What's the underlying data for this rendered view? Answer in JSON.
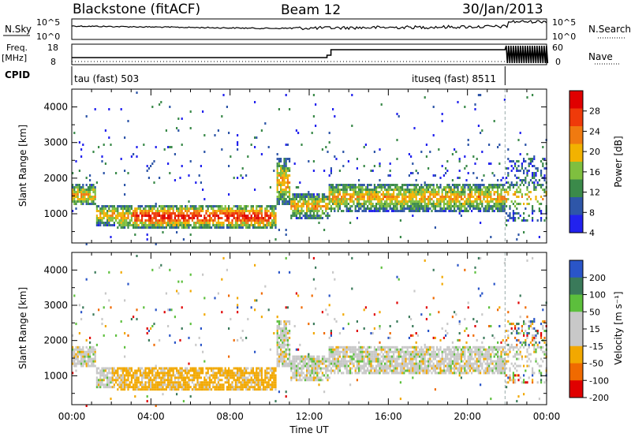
{
  "header": {
    "station": "Blackstone (fitACF)",
    "beam": "Beam 12",
    "date": "30/Jan/2013"
  },
  "left_labels": {
    "nsky": "N.Sky",
    "freq": "Freq.",
    "freq_unit": "[MHz]",
    "cpid": "CPID",
    "nsky_ticks": [
      "10^5",
      "10^0"
    ],
    "freq_ticks": [
      "18",
      "8"
    ]
  },
  "right_labels": {
    "nsearch": "N.Search",
    "nave": "Nave",
    "nsearch_ticks": [
      "10^5",
      "10^0"
    ],
    "nave_ticks": [
      "60",
      "0"
    ]
  },
  "cpid": {
    "segments": [
      {
        "label": "tau (fast) 503",
        "start_hour": 0,
        "end_hour": 21.9
      },
      {
        "label": "ituseq (fast) 8511",
        "start_hour": 21.9,
        "end_hour": 24
      }
    ]
  },
  "colors": {
    "power": [
      "#2222ee",
      "#2e56a8",
      "#3b8a4a",
      "#7fbf3f",
      "#f2b200",
      "#f07a10",
      "#ef3a0a",
      "#e00000"
    ],
    "velocity": [
      "#2a55c8",
      "#3a7a5a",
      "#5cbf3c",
      "#c8c8c8",
      "#c8c8c8",
      "#f2a800",
      "#f06a00",
      "#e00000"
    ]
  },
  "chart_data": [
    {
      "type": "heatmap",
      "name": "power",
      "ylabel": "Slant Range [km]",
      "xlim": [
        0,
        24
      ],
      "ylim": [
        180,
        4500
      ],
      "y_ticks": [
        "1000",
        "2000",
        "3000",
        "4000"
      ],
      "colorbar": {
        "label": "Power [dB]",
        "ticks": [
          "28",
          "24",
          "20",
          "16",
          "12",
          "8",
          "4"
        ]
      }
    },
    {
      "type": "heatmap",
      "name": "velocity",
      "ylabel": "Slant Range [km]",
      "xlabel": "Time UT",
      "xlim": [
        0,
        24
      ],
      "ylim": [
        180,
        4500
      ],
      "x_ticks": [
        "00:00",
        "04:00",
        "08:00",
        "12:00",
        "16:00",
        "20:00",
        "00:00"
      ],
      "y_ticks": [
        "1000",
        "2000",
        "3000",
        "4000"
      ],
      "colorbar": {
        "label": "Velocity [m s⁻¹]",
        "ticks": [
          "200",
          "100",
          "50",
          "15",
          "-15",
          "-50",
          "-100",
          "-200"
        ]
      }
    }
  ]
}
